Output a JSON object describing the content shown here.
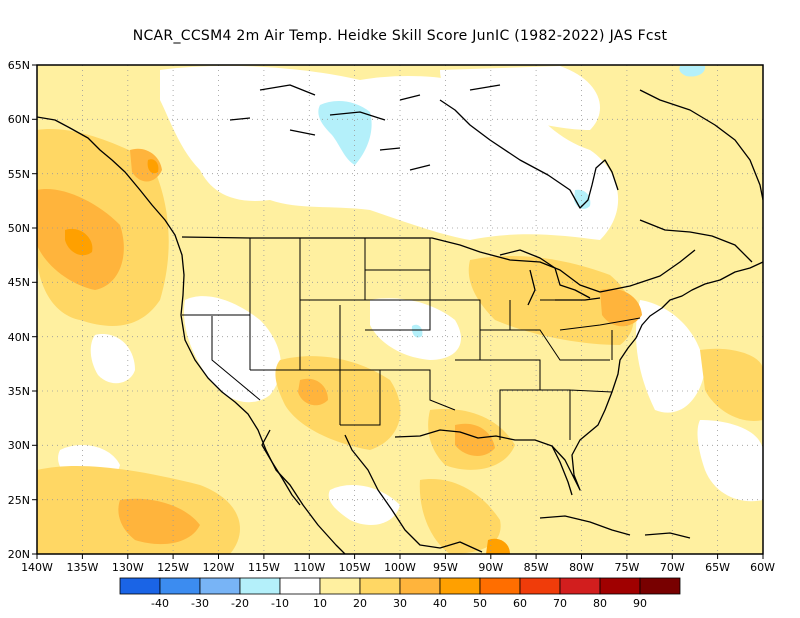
{
  "title": "NCAR_CCSM4  2m Air Temp. Heidke Skill Score JunIC (1982-2022) JAS Fcst",
  "lat_labels": [
    "65N",
    "60N",
    "55N",
    "50N",
    "45N",
    "40N",
    "35N",
    "30N",
    "25N",
    "20N"
  ],
  "lon_labels": [
    "140W",
    "135W",
    "130W",
    "125W",
    "120W",
    "115W",
    "110W",
    "105W",
    "100W",
    "95W",
    "90W",
    "85W",
    "80W",
    "75W",
    "70W",
    "65W",
    "60W"
  ],
  "colorbar": {
    "labels": [
      "-40",
      "-30",
      "-20",
      "-10",
      "10",
      "20",
      "30",
      "40",
      "50",
      "60",
      "70",
      "80",
      "90"
    ],
    "colors": [
      "#1a64e6",
      "#3c8cf0",
      "#78b4f6",
      "#b4f0fa",
      "#ffffff",
      "#fff0a0",
      "#ffd764",
      "#ffb43c",
      "#ffa000",
      "#ff6e00",
      "#f03c0a",
      "#d21e1e",
      "#a00000",
      "#780000"
    ]
  },
  "chart_data": {
    "type": "heatmap",
    "title": "NCAR_CCSM4  2m Air Temp. Heidke Skill Score JunIC (1982-2022) JAS Fcst",
    "lat_range": [
      "20N",
      "65N"
    ],
    "lon_range": [
      "140W",
      "60W"
    ],
    "lat_ticks": [
      "65N",
      "60N",
      "55N",
      "50N",
      "45N",
      "40N",
      "35N",
      "30N",
      "25N",
      "20N"
    ],
    "lon_ticks": [
      "140W",
      "135W",
      "130W",
      "125W",
      "120W",
      "115W",
      "110W",
      "105W",
      "100W",
      "95W",
      "90W",
      "85W",
      "80W",
      "75W",
      "70W",
      "65W",
      "60W"
    ],
    "colorbar_levels": [
      -40,
      -30,
      -20,
      -10,
      10,
      20,
      30,
      40,
      50,
      60,
      70,
      80,
      90
    ],
    "grid": "dotted",
    "legend": "bottom"
  }
}
